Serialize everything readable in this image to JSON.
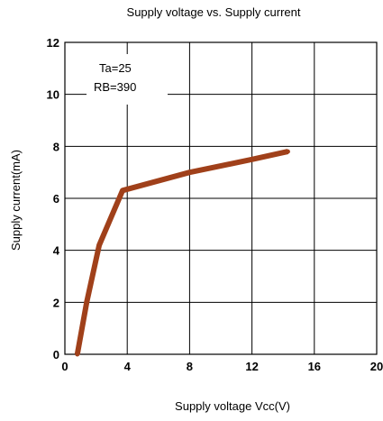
{
  "chart_data": {
    "type": "line",
    "title": "Supply voltage vs. Supply current",
    "xlabel": "Supply voltage Vcc(V)",
    "ylabel": "Supply current(mA)",
    "xlim": [
      0,
      20
    ],
    "ylim": [
      0,
      12
    ],
    "xticks": [
      "0",
      "4",
      "8",
      "12",
      "16",
      "20"
    ],
    "yticks": [
      "0",
      "2",
      "4",
      "6",
      "8",
      "10",
      "12"
    ],
    "grid": true,
    "annotations": [
      "Ta=25",
      "RB=390"
    ],
    "series": [
      {
        "color": "#a0401a",
        "x": [
          0.8,
          1.4,
          2.2,
          3.7,
          8.0,
          12.0,
          14.3
        ],
        "y": [
          0.0,
          2.0,
          4.2,
          6.3,
          7.0,
          7.5,
          7.8
        ]
      }
    ]
  }
}
